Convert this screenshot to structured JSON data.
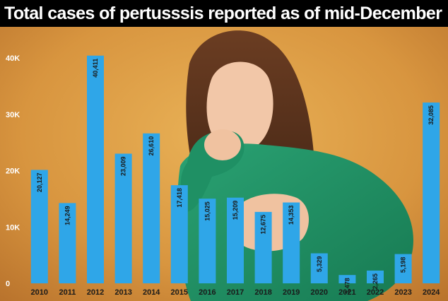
{
  "title": "Total cases of pertusssis reported as of mid-December",
  "colors": {
    "bar": "#2fa6e8",
    "title_bg": "#000000",
    "title_text": "#ffffff",
    "background": "#d89a45"
  },
  "chart_data": {
    "type": "bar",
    "title": "Total cases of pertusssis reported as of mid-December",
    "xlabel": "",
    "ylabel": "",
    "categories": [
      "2010",
      "2011",
      "2012",
      "2013",
      "2014",
      "2015",
      "2016",
      "2017",
      "2018",
      "2019",
      "2020",
      "2021",
      "2022",
      "2023",
      "2024"
    ],
    "values": [
      20127,
      14249,
      40411,
      23009,
      26610,
      17418,
      15025,
      15209,
      12675,
      14353,
      5329,
      1478,
      2265,
      5198,
      32085
    ],
    "value_labels": [
      "20,127",
      "14,249",
      "40,411",
      "23,009",
      "26,610",
      "17,418",
      "15,025",
      "15,209",
      "12,675",
      "14,353",
      "5,329",
      "1,478",
      "2,265",
      "5,198",
      "32,085"
    ],
    "ylim": [
      0,
      40000
    ],
    "yticks": [
      0,
      10000,
      20000,
      30000,
      40000
    ],
    "ytick_labels": [
      "0",
      "10K",
      "20K",
      "30K",
      "40K"
    ],
    "grid": false,
    "legend": "none"
  }
}
